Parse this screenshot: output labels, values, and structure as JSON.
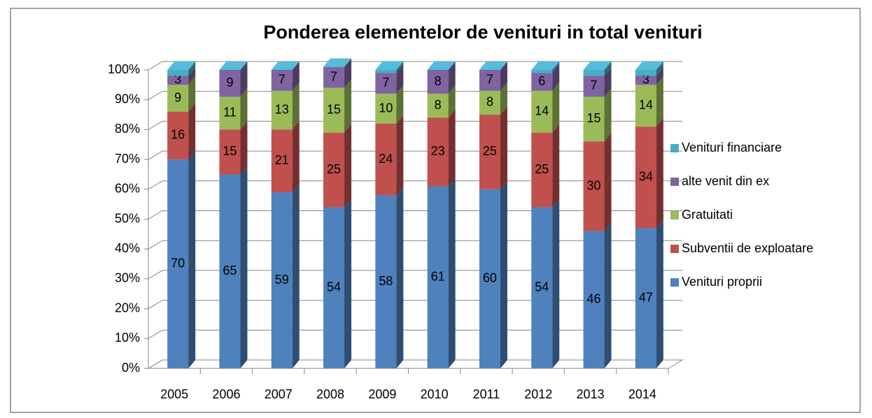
{
  "chart_data": {
    "type": "bar3d_stacked",
    "title": "Ponderea elementelor de venituri in total venituri",
    "categories": [
      "2005",
      "2006",
      "2007",
      "2008",
      "2009",
      "2010",
      "2011",
      "2012",
      "2013",
      "2014"
    ],
    "series": [
      {
        "name": "Venituri proprii",
        "color": "#4f81bd",
        "values": [
          70,
          65,
          59,
          54,
          58,
          61,
          60,
          54,
          46,
          47
        ]
      },
      {
        "name": "Subventii de exploatare",
        "color": "#c0504d",
        "values": [
          16,
          15,
          21,
          25,
          24,
          23,
          25,
          25,
          30,
          34
        ]
      },
      {
        "name": "Gratuitati",
        "color": "#9bbb59",
        "values": [
          9,
          11,
          13,
          15,
          10,
          8,
          8,
          14,
          15,
          14
        ]
      },
      {
        "name": "alte venit din ex",
        "color": "#8064a2",
        "values": [
          3,
          9,
          7,
          7,
          7,
          8,
          7,
          6,
          7,
          3
        ]
      },
      {
        "name": "Venituri financiare",
        "color": "#4bacc6",
        "values": [
          2,
          0,
          0,
          0,
          1,
          0,
          0,
          1,
          2,
          2
        ]
      }
    ],
    "label_series": [
      0,
      1,
      2,
      3
    ],
    "ylim": [
      0,
      100
    ],
    "yticks": [
      {
        "value": 0,
        "label": "0%"
      },
      {
        "value": 10,
        "label": "10%"
      },
      {
        "value": 20,
        "label": "20%"
      },
      {
        "value": 30,
        "label": "30%"
      },
      {
        "value": 40,
        "label": "40%"
      },
      {
        "value": 50,
        "label": "50%"
      },
      {
        "value": 60,
        "label": "60%"
      },
      {
        "value": 70,
        "label": "70%"
      },
      {
        "value": 80,
        "label": "80%"
      },
      {
        "value": 90,
        "label": "90%"
      },
      {
        "value": 100,
        "label": "100%"
      }
    ],
    "grid": true,
    "legend": "right"
  }
}
